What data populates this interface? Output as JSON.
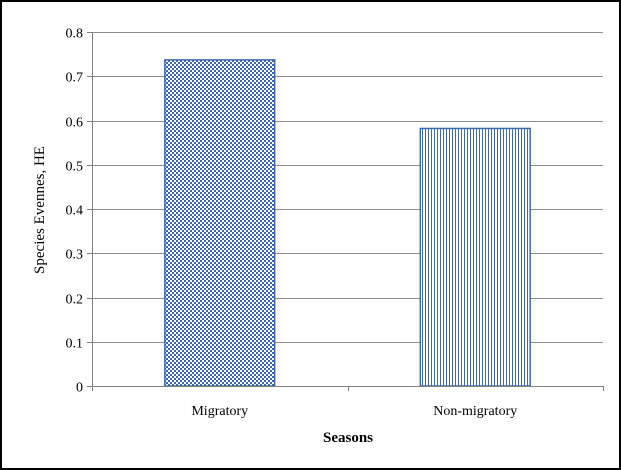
{
  "chart_data": {
    "type": "bar",
    "title": "",
    "xlabel": "Seasons",
    "ylabel": "Species Evennes, HE",
    "categories": [
      "Migratory",
      "Non-migratory"
    ],
    "values": [
      0.737,
      0.582
    ],
    "ylim": [
      0,
      0.8
    ],
    "yticks": [
      "0",
      "0.1",
      "0.2",
      "0.3",
      "0.4",
      "0.5",
      "0.6",
      "0.7",
      "0.8"
    ],
    "grid": true,
    "legend": "none",
    "colors": {
      "bar_stroke": "#3d6aa8",
      "pattern": "#3d6aa8",
      "gridline": "#8c8c8c",
      "axis": "#808080"
    },
    "patterns": [
      "crosshatch-dots",
      "vertical-lines"
    ]
  }
}
